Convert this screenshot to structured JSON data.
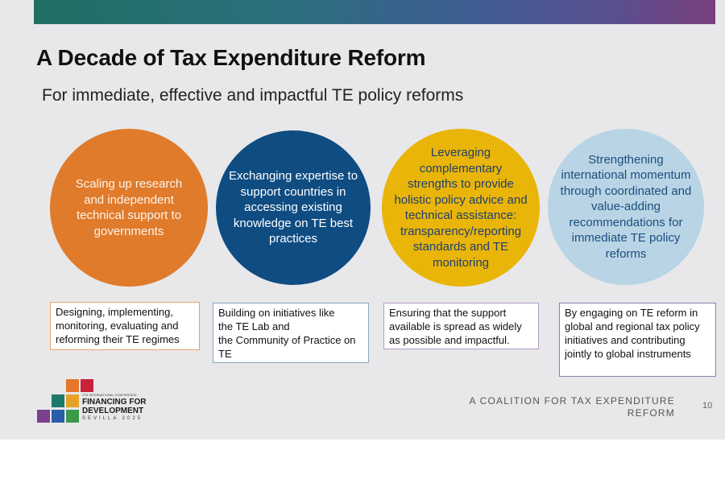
{
  "slide": {
    "title": "A Decade of Tax Expenditure Reform",
    "subtitle": "For immediate, effective and impactful TE policy reforms",
    "colors": {
      "orange": "#e07b2c",
      "navy": "#0f4c82",
      "yellow": "#e9b509",
      "light_blue": "#b9d4e4",
      "background": "#e8e8ea"
    },
    "pillars": [
      {
        "circle_text": "Scaling up research and independent technical support to governments",
        "box_text": "Designing, implementing, monitoring, evaluating and reforming their TE regimes"
      },
      {
        "circle_text": "Exchanging expertise to support countries in accessing existing knowledge on TE best practices",
        "box_text": "Building on initiatives like\nthe TE Lab and\nthe Community of Practice on TE"
      },
      {
        "circle_text": "Leveraging complementary strengths to provide holistic policy advice and technical assistance: transparency/reporting standards and TE monitoring",
        "box_text": "Ensuring that the support available is spread as widely as possible and impactful."
      },
      {
        "circle_text": "Strengthening international momentum through coordinated and value-adding recommendations for immediate TE policy reforms",
        "box_text": "By engaging on TE reform in global and regional tax policy initiatives and contributing jointly to global instruments"
      }
    ],
    "logo": {
      "small_text": "4TH INTERNATIONAL CONFERENCE",
      "line1": "FINANCING FOR",
      "line2": "DEVELOPMENT",
      "city": "SEVILLA 2025"
    },
    "footer": "A COALITION FOR TAX EXPENDITURE REFORM",
    "page_number": "10"
  }
}
